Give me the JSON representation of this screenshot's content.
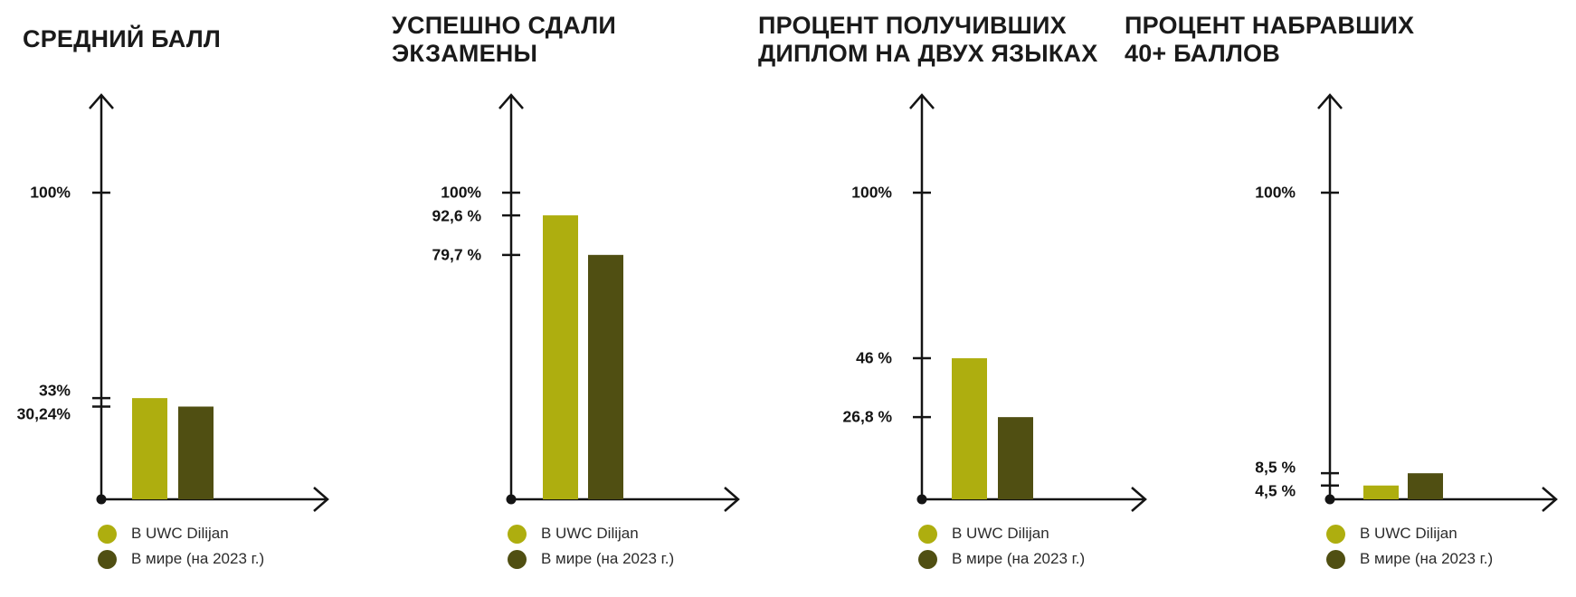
{
  "page": {
    "background": "#ffffff"
  },
  "colors": {
    "uwc": "#aeae0f",
    "world": "#504f12",
    "axis": "#141414",
    "title_text": "#1a1a1a",
    "label_text": "#141414",
    "legend_text": "#2b2b2b"
  },
  "legend": {
    "items": [
      {
        "key": "uwc",
        "label": "В UWC Dilijan"
      },
      {
        "key": "world",
        "label": "В мире (на 2023 г.)"
      }
    ]
  },
  "chart_data": [
    {
      "type": "bar",
      "title": "СРЕДНИЙ БАЛЛ",
      "title_lines": [
        "СРЕДНИЙ БАЛЛ"
      ],
      "ylim": [
        0,
        100
      ],
      "yaxis_unit": "%",
      "grid": false,
      "legend_position": "bottom-left",
      "axis_ticks": [
        {
          "label": "100%",
          "value": 100
        },
        {
          "label": "33%",
          "value": 33
        },
        {
          "label": "30,24%",
          "value": 30.24
        }
      ],
      "series": [
        {
          "name": "В UWC Dilijan",
          "color_key": "uwc",
          "value": 33,
          "label": "33%"
        },
        {
          "name": "В мире (на 2023 г.)",
          "color_key": "world",
          "value": 30.24,
          "label": "30,24%"
        }
      ]
    },
    {
      "type": "bar",
      "title": "УСПЕШНО СДАЛИ ЭКЗАМЕНЫ",
      "title_lines": [
        "УСПЕШНО СДАЛИ",
        "ЭКЗАМЕНЫ"
      ],
      "ylim": [
        0,
        100
      ],
      "yaxis_unit": "%",
      "grid": false,
      "legend_position": "bottom-left",
      "axis_ticks": [
        {
          "label": "100%",
          "value": 100
        },
        {
          "label": "92,6 %",
          "value": 92.6
        },
        {
          "label": "79,7 %",
          "value": 79.7
        }
      ],
      "series": [
        {
          "name": "В UWC Dilijan",
          "color_key": "uwc",
          "value": 92.6,
          "label": "92,6 %"
        },
        {
          "name": "В мире (на 2023 г.)",
          "color_key": "world",
          "value": 79.7,
          "label": "79,7 %"
        }
      ]
    },
    {
      "type": "bar",
      "title": "ПРОЦЕНТ ПОЛУЧИВШИХ ДИПЛОМ НА ДВУХ ЯЗЫКАХ",
      "title_lines": [
        "ПРОЦЕНТ ПОЛУЧИВШИХ",
        "ДИПЛОМ НА ДВУХ ЯЗЫКАХ"
      ],
      "ylim": [
        0,
        100
      ],
      "yaxis_unit": "%",
      "grid": false,
      "legend_position": "bottom-left",
      "axis_ticks": [
        {
          "label": "100%",
          "value": 100
        },
        {
          "label": "46 %",
          "value": 46
        },
        {
          "label": "26,8 %",
          "value": 26.8
        }
      ],
      "series": [
        {
          "name": "В UWC Dilijan",
          "color_key": "uwc",
          "value": 46,
          "label": "46 %"
        },
        {
          "name": "В мире (на 2023 г.)",
          "color_key": "world",
          "value": 26.8,
          "label": "26,8 %"
        }
      ]
    },
    {
      "type": "bar",
      "title": "ПРОЦЕНТ НАБРАВШИХ 40+ БАЛЛОВ",
      "title_lines": [
        "ПРОЦЕНТ НАБРАВШИХ",
        "40+ БАЛЛОВ"
      ],
      "ylim": [
        0,
        100
      ],
      "yaxis_unit": "%",
      "grid": false,
      "legend_position": "bottom-left",
      "axis_ticks": [
        {
          "label": "100%",
          "value": 100
        },
        {
          "label": "8,5 %",
          "value": 8.5
        },
        {
          "label": "4,5 %",
          "value": 4.5
        }
      ],
      "series": [
        {
          "name": "В UWC Dilijan",
          "color_key": "uwc",
          "value": 4.5,
          "label": "4,5 %"
        },
        {
          "name": "В мире (на 2023 г.)",
          "color_key": "world",
          "value": 8.5,
          "label": "8,5 %"
        }
      ]
    }
  ]
}
